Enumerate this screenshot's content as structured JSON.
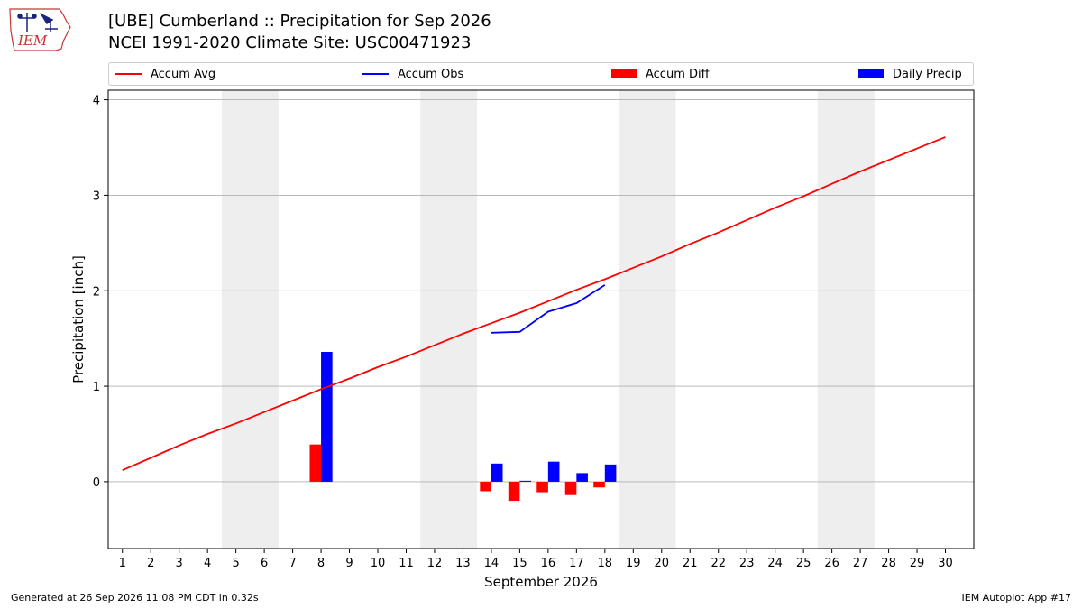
{
  "header": {
    "title_line1": "[UBE] Cumberland :: Precipitation for Sep 2026",
    "title_line2": "NCEI 1991-2020 Climate Site: USC00471923",
    "logo_text": "IEM"
  },
  "footer": {
    "generated": "Generated at 26 Sep 2026 11:08 PM CDT in 0.32s",
    "app": "IEM Autoplot App #17"
  },
  "colors": {
    "avg": "#ff0000",
    "obs": "#0000ff",
    "diff": "#ff0000",
    "daily": "#0000ff",
    "weekend": "#eeeeee",
    "grid": "#b0b0b0"
  },
  "chart_data": {
    "type": "bar",
    "title": "[UBE] Cumberland :: Precipitation for Sep 2026",
    "xlabel": "September 2026",
    "ylabel": "Precipitation [inch]",
    "xlim": [
      0.5,
      31
    ],
    "ylim": [
      -0.7,
      4.1
    ],
    "yticks": [
      0,
      1,
      2,
      3,
      4
    ],
    "x_ticks": [
      1,
      2,
      3,
      4,
      5,
      6,
      7,
      8,
      9,
      10,
      11,
      12,
      13,
      14,
      15,
      16,
      17,
      18,
      19,
      20,
      21,
      22,
      23,
      24,
      25,
      26,
      27,
      28,
      29,
      30
    ],
    "grid": "horizontal",
    "legend_position": "top",
    "weekend_bands": [
      [
        5,
        6
      ],
      [
        12,
        13
      ],
      [
        19,
        20
      ],
      [
        26,
        27
      ]
    ],
    "legend": [
      "Accum Avg",
      "Accum Obs",
      "Accum Diff",
      "Daily Precip"
    ],
    "series": [
      {
        "name": "Accum Avg",
        "type": "line",
        "x": [
          1,
          2,
          3,
          4,
          5,
          6,
          7,
          8,
          9,
          10,
          11,
          12,
          13,
          14,
          15,
          16,
          17,
          18,
          19,
          20,
          21,
          22,
          23,
          24,
          25,
          26,
          27,
          28,
          29,
          30
        ],
        "values": [
          0.12,
          0.25,
          0.38,
          0.5,
          0.61,
          0.73,
          0.85,
          0.97,
          1.08,
          1.2,
          1.31,
          1.43,
          1.55,
          1.66,
          1.77,
          1.89,
          2.01,
          2.12,
          2.24,
          2.36,
          2.49,
          2.61,
          2.74,
          2.87,
          2.99,
          3.12,
          3.25,
          3.37,
          3.49,
          3.61
        ]
      },
      {
        "name": "Accum Obs",
        "type": "line",
        "x": [
          14,
          15,
          16,
          17,
          18
        ],
        "values": [
          1.56,
          1.57,
          1.78,
          1.87,
          2.06
        ]
      },
      {
        "name": "Accum Diff",
        "type": "bar",
        "x": [
          8,
          14,
          15,
          16,
          17,
          18
        ],
        "values": [
          0.39,
          -0.1,
          -0.2,
          -0.11,
          -0.14,
          -0.06
        ]
      },
      {
        "name": "Daily Precip",
        "type": "bar",
        "x": [
          8,
          14,
          15,
          16,
          17,
          18
        ],
        "values": [
          1.36,
          0.19,
          0.01,
          0.21,
          0.09,
          0.18
        ]
      }
    ]
  }
}
